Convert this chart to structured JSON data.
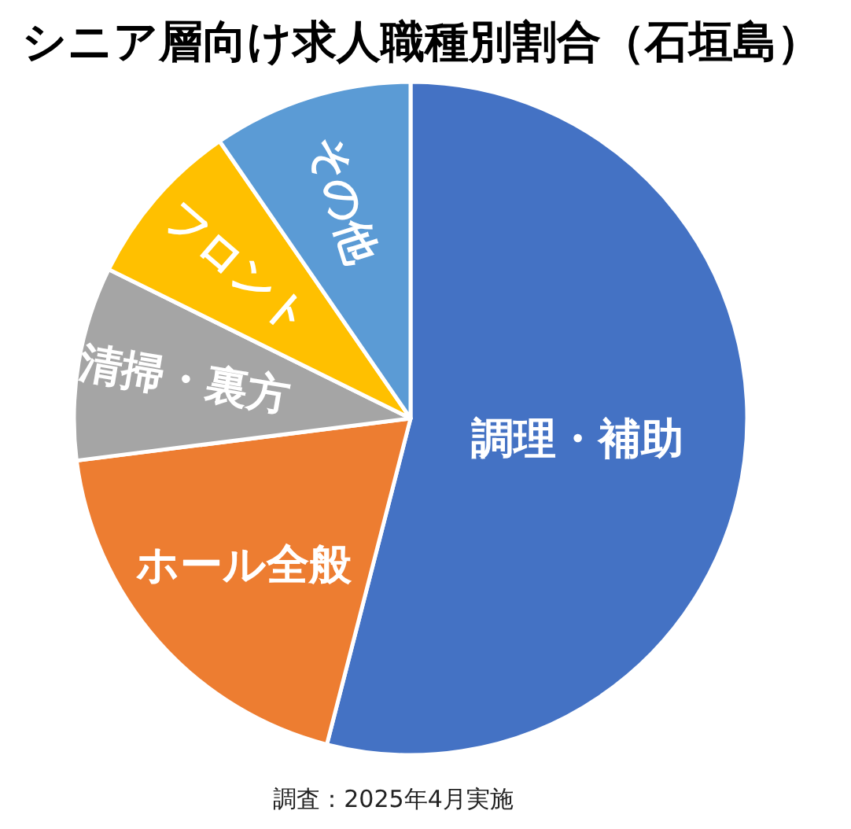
{
  "chart_data": {
    "type": "pie",
    "title": "シニア層向け求人職種別割合（石垣島）",
    "categories": [
      "調理・補助",
      "ホール全般",
      "清掃・裏方",
      "フロント",
      "その他"
    ],
    "values": [
      54,
      19,
      9.3,
      8.1,
      9.6
    ],
    "colors": [
      "#4472c4",
      "#ed7d31",
      "#a5a5a5",
      "#ffc000",
      "#5b9bd5"
    ],
    "annotations": [
      "調査：2025年4月実施"
    ]
  }
}
